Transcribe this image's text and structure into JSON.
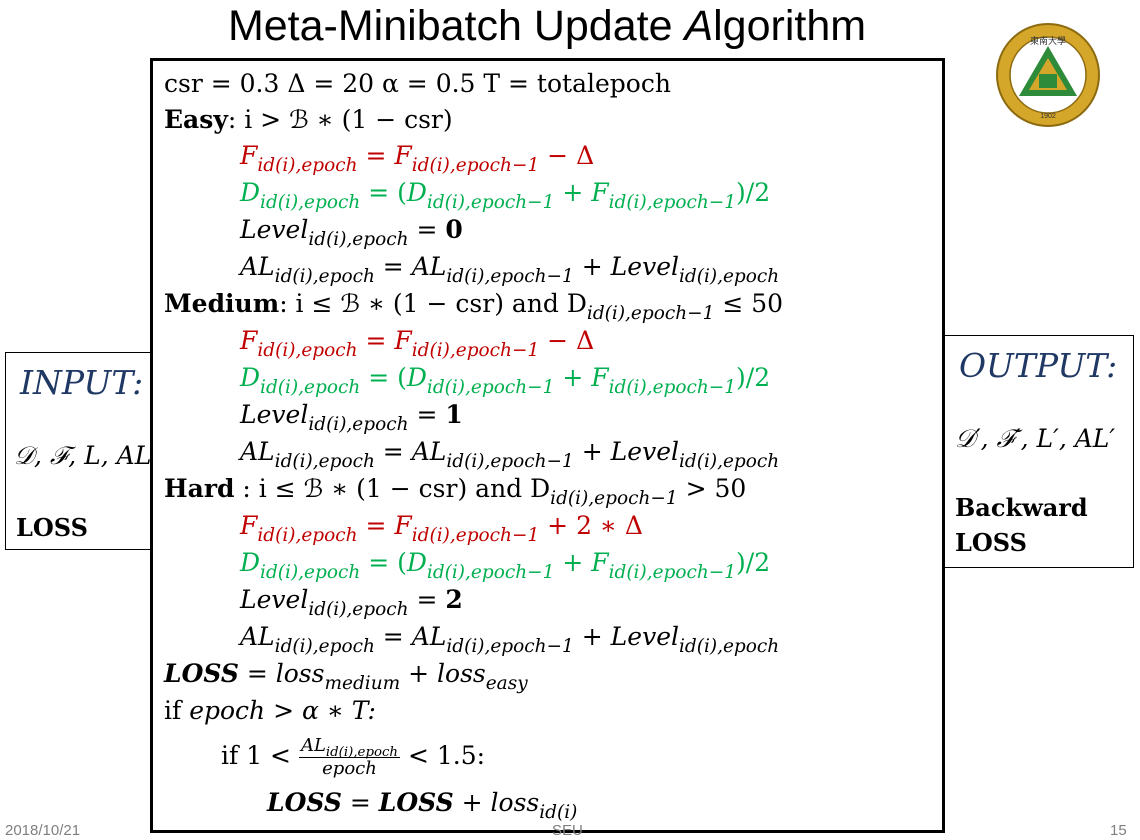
{
  "slide": {
    "title_prefix": "Meta-Minibatch Update ",
    "title_italic": "A",
    "title_suffix": "lgorithm"
  },
  "logo": {
    "name": "southeast-university-seal",
    "text": "SOUTHEAST UNIVERSITY 1902 東南大學"
  },
  "input": {
    "title": "INPUT:",
    "vars": "𝒟, ℱ, L, AL",
    "loss": "LOSS"
  },
  "output": {
    "title": "OUTPUT:",
    "vars": "𝒟′, ℱ′, L′, AL′",
    "line1": "Backward",
    "line2": "LOSS"
  },
  "algorithm": {
    "params": "csr = 0.3    Δ = 20    α = 0.5       T = totalepoch",
    "easy_label": "Easy",
    "easy_cond": ": i > ℬ ∗ (1 − csr)",
    "medium_label": "Medium",
    "medium_cond": ":  i ≤ ℬ ∗ (1 − csr) and D",
    "medium_sub": "id(i),epoch−1",
    "medium_tail": " ≤ 50",
    "hard_label": "Hard",
    "hard_cond": " : i ≤ ℬ ∗ (1 − csr) and D",
    "hard_sub": "id(i),epoch−1",
    "hard_tail": " > 50",
    "f_easy_tail": " − Δ",
    "f_medium_tail": " − Δ",
    "f_hard_tail": " + 2 ∗ Δ",
    "level_easy": "0",
    "level_medium": "1",
    "level_hard": "2",
    "loss_label": "LOSS",
    "loss_rhs_a": " = loss",
    "loss_sub_a": "medium",
    "loss_rhs_b": " + loss",
    "loss_sub_b": "easy",
    "if1_kw": "if ",
    "if1_cond": "epoch > α ∗ T:",
    "if2_kw": "if 1 < ",
    "if2_num": "AL",
    "if2_num_sub": "id(i),epoch",
    "if2_den": "epoch",
    "if2_tail": " < 1.5:",
    "update_lhs": "LOSS",
    "update_eq": " = ",
    "update_mid": "LOSS",
    "update_rhs": " + loss",
    "update_sub": "id(i)"
  },
  "footer": {
    "date": "2018/10/21",
    "center": "SEU",
    "page": "15"
  }
}
